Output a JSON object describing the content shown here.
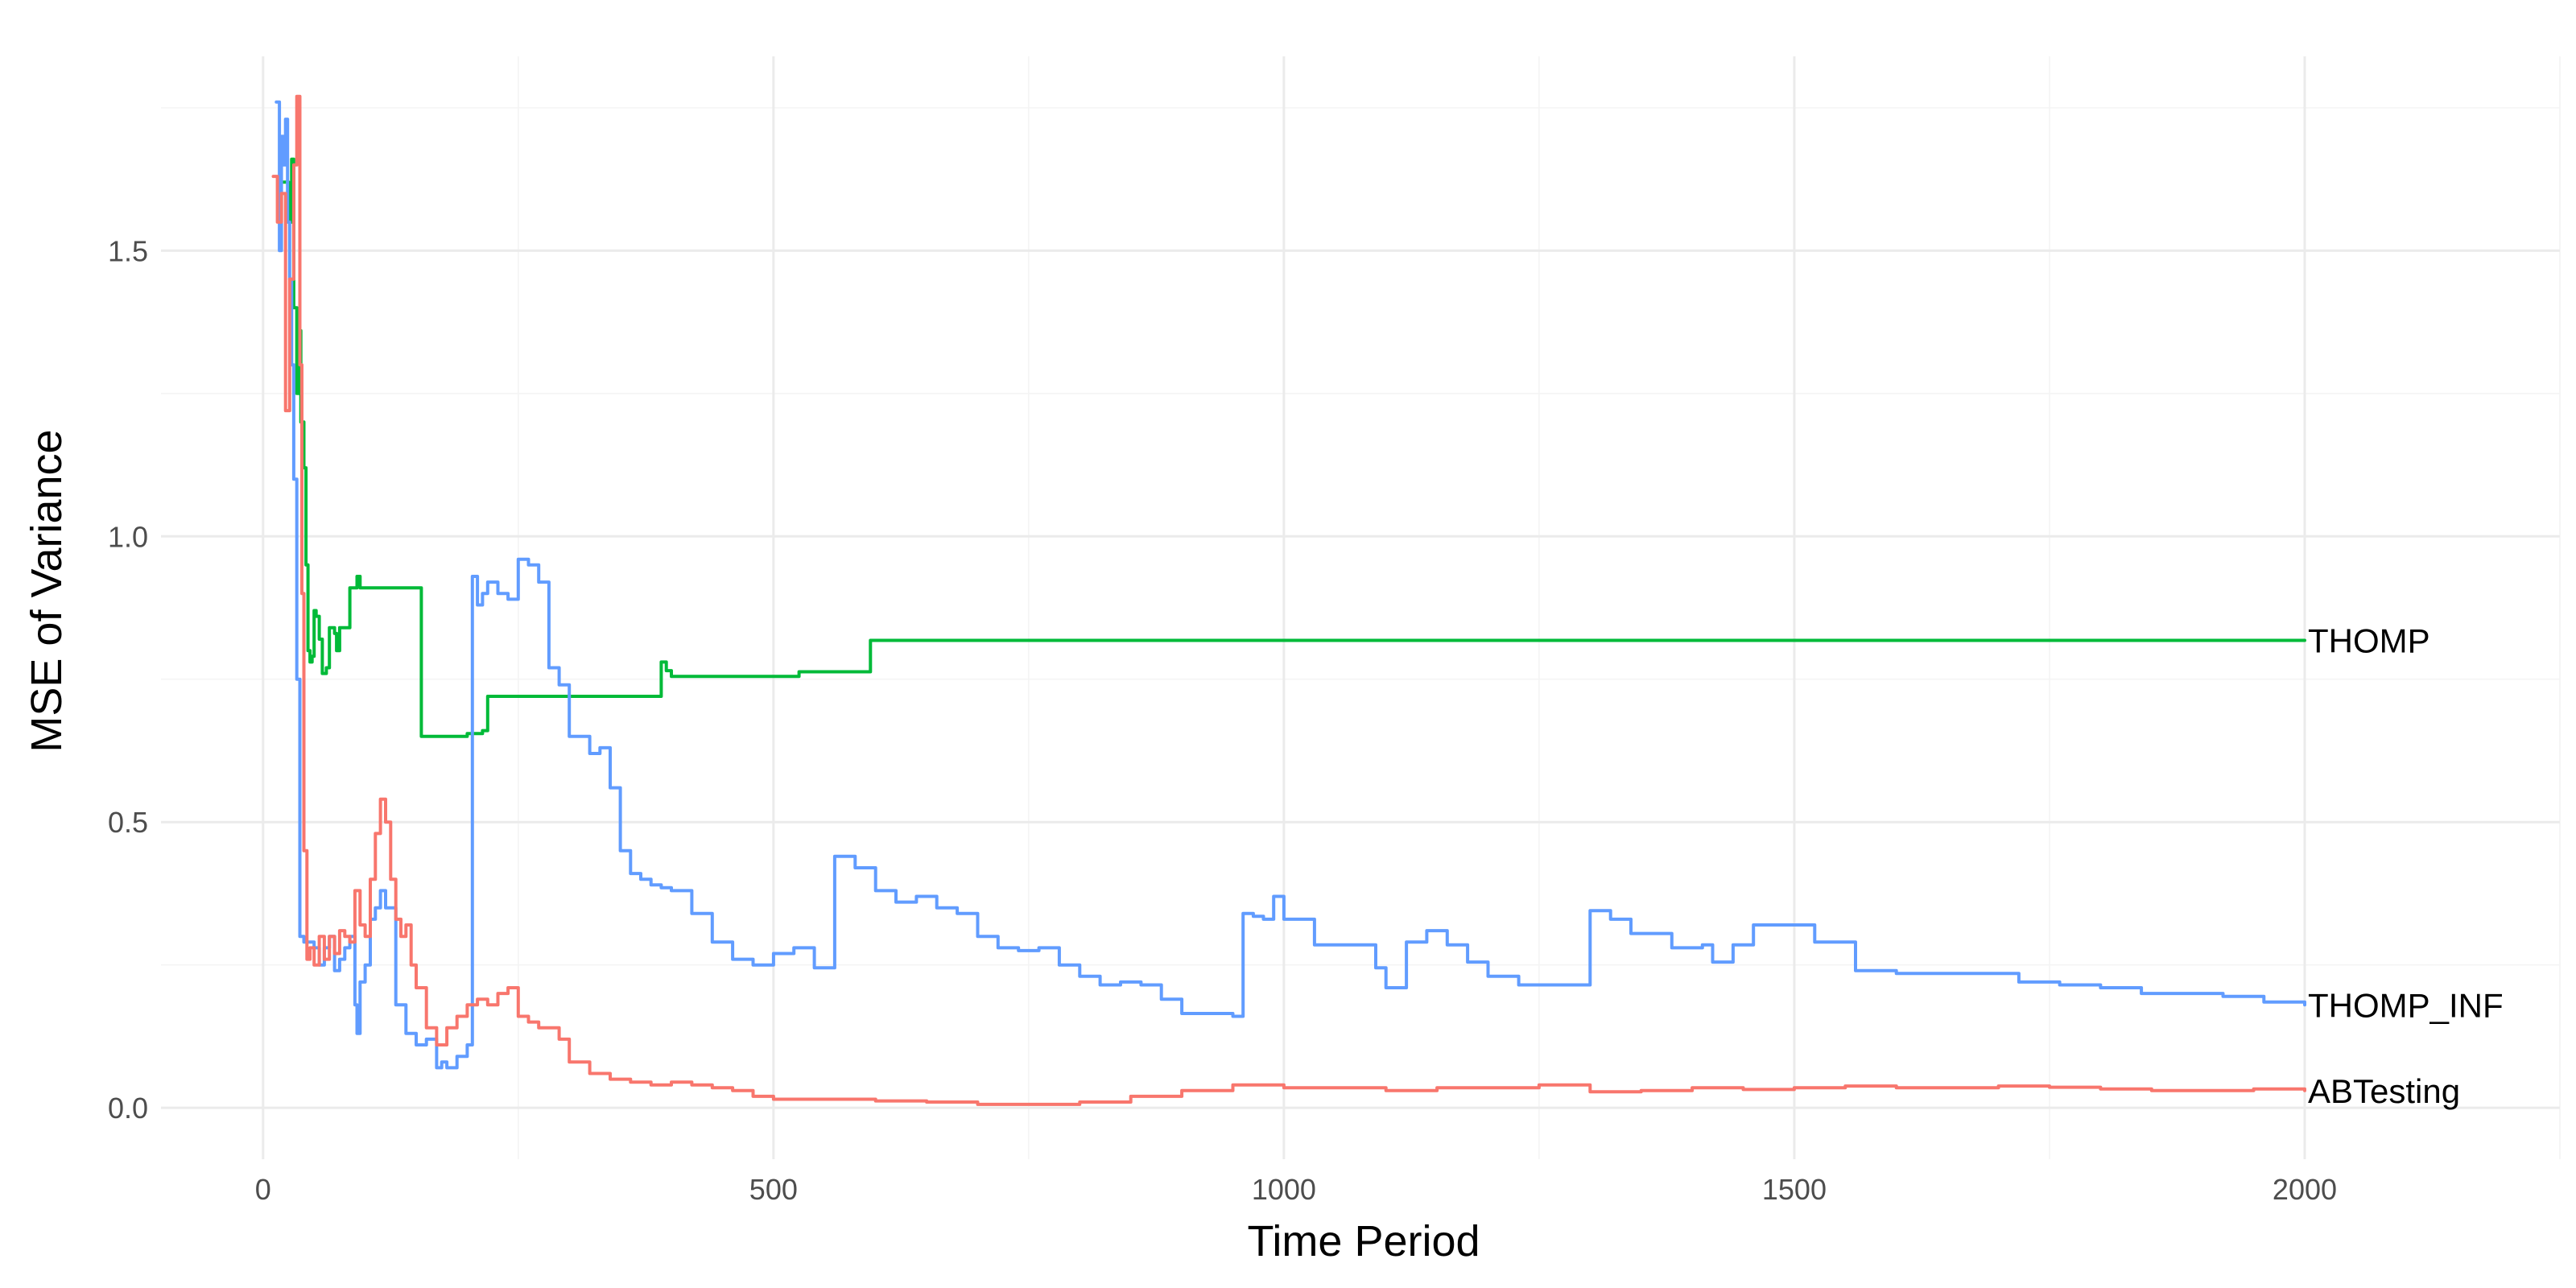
{
  "chart_data": {
    "type": "line",
    "title": "",
    "xlabel": "Time Period",
    "ylabel": "MSE of Variance",
    "xlim": [
      -100,
      2250
    ],
    "ylim": [
      -0.09,
      1.84
    ],
    "x_ticks": [
      0,
      500,
      1000,
      1500,
      2000
    ],
    "x_tick_labels": [
      "0",
      "500",
      "1000",
      "1500",
      "2000"
    ],
    "y_ticks": [
      0.0,
      0.5,
      1.0,
      1.5
    ],
    "y_tick_labels": [
      "0.0",
      "0.5",
      "1.0",
      "1.5"
    ],
    "grid": true,
    "legend": "direct labels at line ends",
    "series": [
      {
        "name": "THOMP",
        "color": "#00ba38",
        "x": [
          20,
          25,
          28,
          30,
          33,
          35,
          37,
          40,
          42,
          44,
          46,
          48,
          50,
          52,
          55,
          58,
          62,
          65,
          68,
          70,
          72,
          75,
          78,
          80,
          85,
          90,
          92,
          95,
          100,
          150,
          155,
          160,
          195,
          200,
          215,
          220,
          250,
          300,
          385,
          390,
          395,
          400,
          450,
          520,
          525,
          590,
          595,
          2000
        ],
        "y": [
          1.62,
          1.55,
          1.66,
          1.4,
          1.25,
          1.36,
          1.2,
          1.12,
          0.95,
          0.8,
          0.78,
          0.79,
          0.87,
          0.86,
          0.82,
          0.76,
          0.77,
          0.84,
          0.84,
          0.83,
          0.8,
          0.84,
          0.84,
          0.84,
          0.91,
          0.91,
          0.93,
          0.91,
          0.91,
          0.91,
          0.65,
          0.65,
          0.65,
          0.655,
          0.66,
          0.72,
          0.72,
          0.72,
          0.72,
          0.78,
          0.765,
          0.755,
          0.755,
          0.755,
          0.763,
          0.763,
          0.818,
          0.818
        ]
      },
      {
        "name": "THOMP_INF",
        "color": "#619cff",
        "x": [
          13,
          16,
          18,
          20,
          22,
          24,
          26,
          28,
          30,
          33,
          36,
          38,
          40,
          45,
          50,
          55,
          60,
          65,
          70,
          75,
          80,
          85,
          90,
          92,
          95,
          100,
          105,
          110,
          115,
          120,
          130,
          140,
          150,
          160,
          170,
          175,
          180,
          190,
          200,
          205,
          210,
          215,
          220,
          230,
          240,
          250,
          260,
          270,
          280,
          290,
          300,
          310,
          320,
          330,
          340,
          350,
          360,
          370,
          380,
          390,
          400,
          420,
          440,
          460,
          480,
          500,
          520,
          540,
          550,
          560,
          580,
          600,
          620,
          640,
          660,
          680,
          700,
          720,
          740,
          760,
          780,
          800,
          820,
          840,
          860,
          880,
          900,
          940,
          950,
          960,
          970,
          980,
          990,
          1000,
          1030,
          1060,
          1090,
          1100,
          1120,
          1140,
          1160,
          1180,
          1200,
          1230,
          1260,
          1290,
          1300,
          1320,
          1340,
          1380,
          1410,
          1420,
          1440,
          1460,
          1490,
          1520,
          1540,
          1560,
          1600,
          1640,
          1680,
          1720,
          1760,
          1800,
          1840,
          1880,
          1920,
          1960,
          2000
        ],
        "y": [
          1.76,
          1.5,
          1.7,
          1.65,
          1.73,
          1.55,
          1.45,
          1.3,
          1.1,
          0.75,
          0.3,
          0.3,
          0.29,
          0.29,
          0.28,
          0.25,
          0.28,
          0.3,
          0.24,
          0.26,
          0.28,
          0.3,
          0.18,
          0.13,
          0.22,
          0.25,
          0.33,
          0.35,
          0.38,
          0.35,
          0.18,
          0.13,
          0.11,
          0.12,
          0.07,
          0.08,
          0.07,
          0.09,
          0.11,
          0.93,
          0.88,
          0.9,
          0.92,
          0.9,
          0.89,
          0.96,
          0.95,
          0.92,
          0.77,
          0.74,
          0.65,
          0.65,
          0.62,
          0.63,
          0.56,
          0.45,
          0.41,
          0.4,
          0.39,
          0.385,
          0.38,
          0.34,
          0.29,
          0.26,
          0.25,
          0.27,
          0.28,
          0.245,
          0.245,
          0.44,
          0.42,
          0.38,
          0.36,
          0.37,
          0.35,
          0.34,
          0.3,
          0.28,
          0.275,
          0.28,
          0.25,
          0.23,
          0.215,
          0.22,
          0.215,
          0.19,
          0.165,
          0.165,
          0.16,
          0.34,
          0.335,
          0.33,
          0.37,
          0.33,
          0.285,
          0.285,
          0.245,
          0.21,
          0.29,
          0.31,
          0.285,
          0.255,
          0.23,
          0.215,
          0.215,
          0.215,
          0.345,
          0.33,
          0.305,
          0.28,
          0.285,
          0.255,
          0.285,
          0.32,
          0.32,
          0.29,
          0.29,
          0.24,
          0.235,
          0.235,
          0.235,
          0.22,
          0.215,
          0.21,
          0.2,
          0.2,
          0.195,
          0.185,
          0.18
        ]
      },
      {
        "name": "ABTesting",
        "color": "#f8766d",
        "x": [
          10,
          14,
          18,
          22,
          26,
          30,
          33,
          36,
          38,
          40,
          43,
          46,
          50,
          55,
          60,
          65,
          70,
          75,
          80,
          85,
          90,
          95,
          100,
          105,
          110,
          115,
          120,
          125,
          130,
          135,
          140,
          145,
          150,
          160,
          170,
          180,
          190,
          200,
          210,
          220,
          230,
          240,
          250,
          260,
          270,
          280,
          290,
          300,
          320,
          340,
          360,
          380,
          400,
          420,
          440,
          460,
          480,
          500,
          550,
          600,
          650,
          700,
          750,
          800,
          850,
          900,
          950,
          1000,
          1050,
          1100,
          1150,
          1200,
          1250,
          1300,
          1350,
          1400,
          1450,
          1500,
          1550,
          1600,
          1650,
          1700,
          1750,
          1800,
          1850,
          1900,
          1950,
          2000
        ],
        "y": [
          1.63,
          1.55,
          1.6,
          1.22,
          1.45,
          1.65,
          1.77,
          1.3,
          0.9,
          0.45,
          0.26,
          0.28,
          0.25,
          0.3,
          0.26,
          0.3,
          0.27,
          0.31,
          0.3,
          0.29,
          0.38,
          0.32,
          0.3,
          0.4,
          0.48,
          0.54,
          0.5,
          0.4,
          0.33,
          0.3,
          0.32,
          0.25,
          0.21,
          0.14,
          0.11,
          0.14,
          0.16,
          0.18,
          0.19,
          0.18,
          0.2,
          0.21,
          0.16,
          0.15,
          0.14,
          0.14,
          0.12,
          0.08,
          0.06,
          0.05,
          0.045,
          0.04,
          0.045,
          0.04,
          0.035,
          0.03,
          0.02,
          0.015,
          0.015,
          0.012,
          0.01,
          0.006,
          0.006,
          0.01,
          0.02,
          0.03,
          0.04,
          0.035,
          0.035,
          0.03,
          0.035,
          0.035,
          0.04,
          0.028,
          0.03,
          0.035,
          0.032,
          0.035,
          0.038,
          0.035,
          0.035,
          0.038,
          0.036,
          0.033,
          0.03,
          0.03,
          0.033,
          0.03
        ]
      }
    ]
  }
}
